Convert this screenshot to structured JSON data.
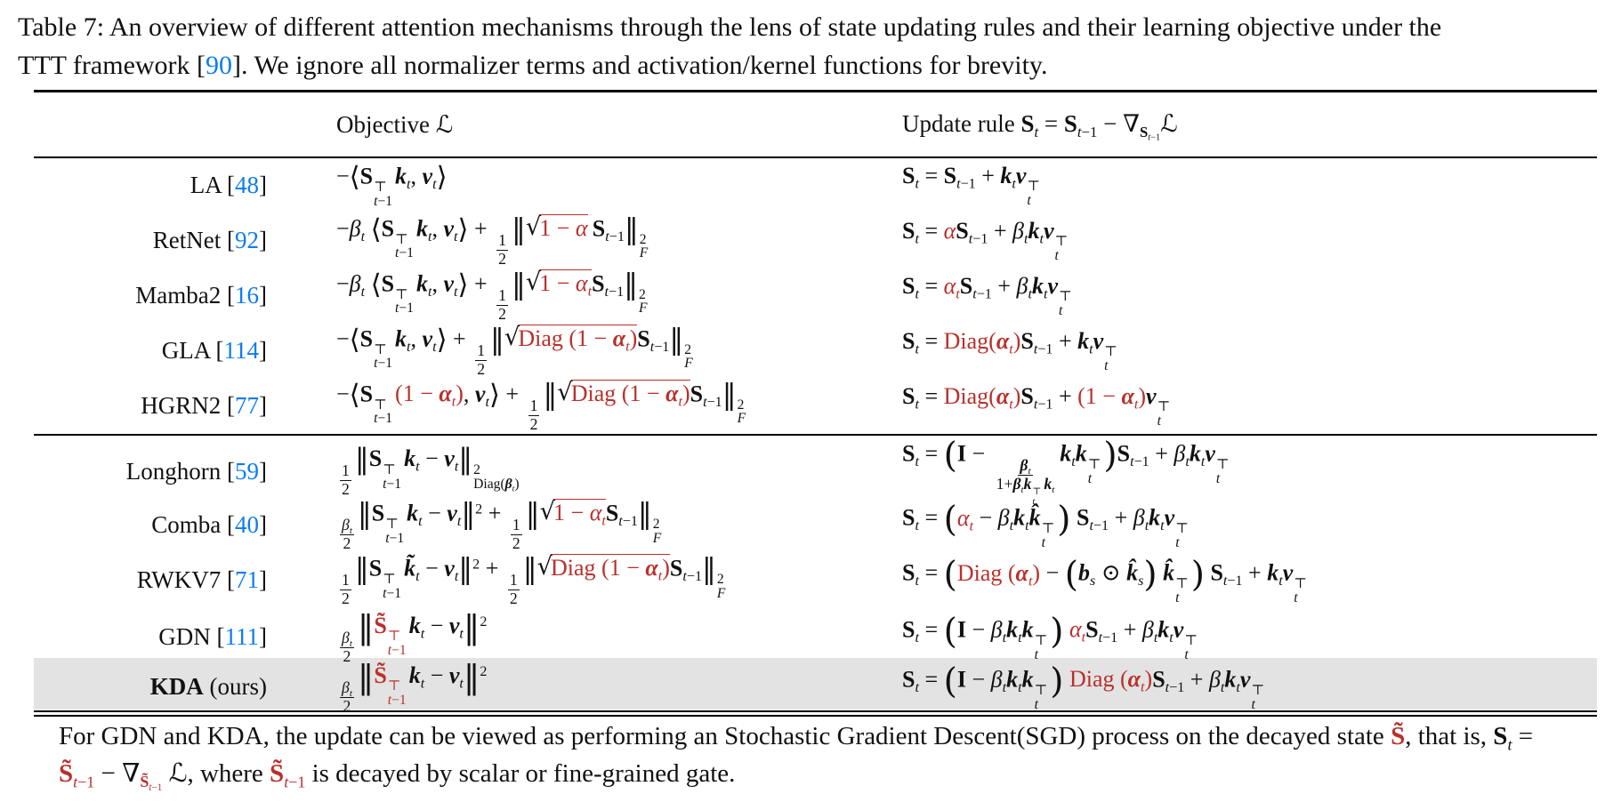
{
  "colors": {
    "accent_blue": "#0d7cf2",
    "formula_red": "#b9302c",
    "highlight_gray": "#e3e3e3"
  },
  "caption": {
    "html": "Table 7: An overview of different attention mechanisms through the lens of state updating rules and their learning objective under the<br>TTT framework [<span class='cite'>90</span>]. We ignore all normalizer terms and activation/kernel functions for brevity."
  },
  "table": {
    "header": {
      "objective_html": "Objective <span class='scr'>ℒ</span>",
      "update_html": "Update rule <b>S</b><sub><i>t</i></sub> = <b>S</b><sub><i>t</i>−1</sub> − ∇<sub><b>S</b><sub><i>t</i>−1</sub></sub><span class='scr'>ℒ</span>"
    },
    "rows": [
      {
        "id": "la",
        "group": 1,
        "highlight": false,
        "name_html": "LA [<span class='cite'>48</span>]",
        "obj_html": "−<span class='ab'>⟨</span><b>S</b><span class='ss'><span>⊤</span><span><i>t</i>−1</span></span><b><i>k</i></b><sub><i>t</i></sub>, <b><i>v</i></b><sub><i>t</i></sub><span class='ab'>⟩</span>",
        "upd_html": "<b>S</b><sub><i>t</i></sub> = <b>S</b><sub><i>t</i>−1</sub> + <b><i>k</i></b><sub><i>t</i></sub><b><i>v</i></b><span class='ss'><span>⊤</span><span><i>t</i></span></span>"
      },
      {
        "id": "retnet",
        "group": 1,
        "highlight": false,
        "name_html": "RetNet [<span class='cite'>92</span>]",
        "obj_html": "−<i>β</i><sub><i>t</i></sub> <span class='ab'>⟨</span><b>S</b><span class='ss'><span>⊤</span><span><i>t</i>−1</span></span><b><i>k</i></b><sub><i>t</i></sub>, <b><i>v</i></b><sub><i>t</i></sub><span class='ab'>⟩</span> + <span class='fr'><span class='fn'>1</span><span class='fd'>2</span></span><span class='nb'>‖</span><span class='sq'>√</span><span class='ov r'>1 − <i>α</i></span>&thinsp;<b>S</b><sub><i>t</i>−1</sub><span class='nb'>‖</span><span class='ss'><span>2</span><span><i>F</i></span></span>",
        "upd_html": "<b>S</b><sub><i>t</i></sub> = <span class='r'><i>α</i></span><b>S</b><sub><i>t</i>−1</sub> + <i>β</i><sub><i>t</i></sub><b><i>k</i></b><sub><i>t</i></sub><b><i>v</i></b><span class='ss'><span>⊤</span><span><i>t</i></span></span>"
      },
      {
        "id": "mamba2",
        "group": 1,
        "highlight": false,
        "name_html": "Mamba2 [<span class='cite'>16</span>]",
        "obj_html": "−<i>β</i><sub><i>t</i></sub> <span class='ab'>⟨</span><b>S</b><span class='ss'><span>⊤</span><span><i>t</i>−1</span></span><b><i>k</i></b><sub><i>t</i></sub>, <b><i>v</i></b><sub><i>t</i></sub><span class='ab'>⟩</span> + <span class='fr'><span class='fn'>1</span><span class='fd'>2</span></span><span class='nb'>‖</span><span class='sq'>√</span><span class='ov r'>1 − <i>α</i><sub><i>t</i></sub></span><b>S</b><sub><i>t</i>−1</sub><span class='nb'>‖</span><span class='ss'><span>2</span><span><i>F</i></span></span>",
        "upd_html": "<b>S</b><sub><i>t</i></sub> = <span class='r'><i>α</i><sub><i>t</i></sub></span><b>S</b><sub><i>t</i>−1</sub> + <i>β</i><sub><i>t</i></sub><b><i>k</i></b><sub><i>t</i></sub><b><i>v</i></b><span class='ss'><span>⊤</span><span><i>t</i></span></span>"
      },
      {
        "id": "gla",
        "group": 1,
        "highlight": false,
        "name_html": "GLA [<span class='cite'>114</span>]",
        "obj_html": "−<span class='ab'>⟨</span><b>S</b><span class='ss'><span>⊤</span><span><i>t</i>−1</span></span><b><i>k</i></b><sub><i>t</i></sub>, <b><i>v</i></b><sub><i>t</i></sub><span class='ab'>⟩</span> + <span class='fr'><span class='fn'>1</span><span class='fd'>2</span></span><span class='nb'>‖</span><span class='sq'>√</span><span class='ov r'>Diag (1 − <b><i>α</i></b><sub><i>t</i></sub>)</span><b>S</b><sub><i>t</i>−1</sub><span class='nb'>‖</span><span class='ss'><span>2</span><span><i>F</i></span></span>",
        "upd_html": "<b>S</b><sub><i>t</i></sub> = <span class='r'>Diag(<b><i>α</i></b><sub><i>t</i></sub>)</span><b>S</b><sub><i>t</i>−1</sub> + <b><i>k</i></b><sub><i>t</i></sub><b><i>v</i></b><span class='ss'><span>⊤</span><span><i>t</i></span></span>"
      },
      {
        "id": "hgrn2",
        "group": 1,
        "highlight": false,
        "name_html": "HGRN2 [<span class='cite'>77</span>]",
        "obj_html": "−<span class='ab'>⟨</span><b>S</b><span class='ss'><span>⊤</span><span><i>t</i>−1</span></span><span class='r'>(1 − <b><i>α</i></b><sub><i>t</i></sub>)</span>, <b><i>v</i></b><sub><i>t</i></sub><span class='ab'>⟩</span> + <span class='fr'><span class='fn'>1</span><span class='fd'>2</span></span><span class='nb'>‖</span><span class='sq'>√</span><span class='ov r'>Diag (1 − <b><i>α</i></b><sub><i>t</i></sub>)</span><b>S</b><sub><i>t</i>−1</sub><span class='nb'>‖</span><span class='ss'><span>2</span><span><i>F</i></span></span>",
        "upd_html": "<b>S</b><sub><i>t</i></sub> = <span class='r'>Diag(<b><i>α</i></b><sub><i>t</i></sub>)</span><b>S</b><sub><i>t</i>−1</sub> + <span class='r'>(1 − <b><i>α</i></b><sub><i>t</i></sub>)</span><b><i>v</i></b><span class='ss'><span>⊤</span><span><i>t</i></span></span>"
      },
      {
        "id": "longhorn",
        "group": 2,
        "highlight": false,
        "name_html": "Longhorn [<span class='cite'>59</span>]",
        "obj_html": "<span class='fr'><span class='fn'>1</span><span class='fd'>2</span></span><span class='nb'>‖</span><b>S</b><span class='ss'><span>⊤</span><span><i>t</i>−1</span></span><b><i>k</i></b><sub><i>t</i></sub> − <b><i>v</i></b><sub><i>t</i></sub><span class='nb'>‖</span><span class='ss'><span>2</span><span>Diag(<b><i>β</i></b><sub><i>t</i></sub>)</span></span>",
        "upd_html": "<b>S</b><sub><i>t</i></sub> = <span class='bp'>(</span><b>I</b> − <span class='fr'><span class='fn'><b><i>β</i></b><sub><i>t</i></sub></span><span class='fd'>1+<b><i>β</i></b><sub><i>t</i></sub><b><i>k</i></b><span class='ss'><span>⊤</span><span><i>t</i></span></span><b><i>k</i></b><sub><i>t</i></sub></span></span><b><i>k</i></b><sub><i>t</i></sub><b><i>k</i></b><span class='ss'><span>⊤</span><span><i>t</i></span></span><span class='bp'>)</span><b>S</b><sub><i>t</i>−1</sub> + <i>β</i><sub><i>t</i></sub><b><i>k</i></b><sub><i>t</i></sub><b><i>v</i></b><span class='ss'><span>⊤</span><span><i>t</i></span></span>"
      },
      {
        "id": "comba",
        "group": 2,
        "highlight": false,
        "name_html": "Comba [<span class='cite'>40</span>]",
        "obj_html": "<span class='fr'><span class='fn'><i>β</i><sub><i>t</i></sub></span><span class='fd'>2</span></span><span class='nb'>‖</span><b>S</b><span class='ss'><span>⊤</span><span><i>t</i>−1</span></span><b><i>k</i></b><sub><i>t</i></sub> − <b><i>v</i></b><sub><i>t</i></sub><span class='nb'>‖</span><sup>2</sup> + <span class='fr'><span class='fn'>1</span><span class='fd'>2</span></span><span class='nb'>‖</span><span class='sq'>√</span><span class='ov r'>1 − <i>α</i><sub><i>t</i></sub></span><b>S</b><sub><i>t</i>−1</sub><span class='nb'>‖</span><span class='ss'><span>2</span><span><i>F</i></span></span>",
        "upd_html": "<b>S</b><sub><i>t</i></sub> = <span class='bp'>(</span><span class='r'><i>α</i><sub><i>t</i></sub></span> − <i>β</i><sub><i>t</i></sub><b><i>k</i></b><sub><i>t</i></sub><b><i>k&#770;</i></b><span class='ss'><span>⊤</span><span><i>t</i></span></span><span class='bp'>)</span> <b>S</b><sub><i>t</i>−1</sub> + <i>β</i><sub><i>t</i></sub><b><i>k</i></b><sub><i>t</i></sub><b><i>v</i></b><span class='ss'><span>⊤</span><span><i>t</i></span></span>"
      },
      {
        "id": "rwkv7",
        "group": 2,
        "highlight": false,
        "name_html": "RWKV7 [<span class='cite'>71</span>]",
        "obj_html": "<span class='fr'><span class='fn'>1</span><span class='fd'>2</span></span><span class='nb'>‖</span><b>S</b><span class='ss'><span>⊤</span><span><i>t</i>−1</span></span><b><i>k&#771;</i></b><sub><i>t</i></sub> − <b><i>v</i></b><sub><i>t</i></sub><span class='nb'>‖</span><sup>2</sup> + <span class='fr'><span class='fn'>1</span><span class='fd'>2</span></span><span class='nb'>‖</span><span class='sq'>√</span><span class='ov r'>Diag (1 − <b><i>α</i></b><sub><i>t</i></sub>)</span><b>S</b><sub><i>t</i>−1</sub><span class='nb'>‖</span><span class='ss'><span>2</span><span><i>F</i></span></span>",
        "upd_html": "<b>S</b><sub><i>t</i></sub> = <span class='bp'>(</span><span class='r'>Diag (<b><i>α</i></b><sub><i>t</i></sub>)</span> − <span class='bp'>(</span><b><i>b</i></b><sub><i>s</i></sub> ⊙ <b><i>k&#770;</i></b><sub><i>s</i></sub><span class='bp'>)</span> <b><i>k&#770;</i></b><span class='ss'><span>⊤</span><span><i>t</i></span></span><span class='bp'>)</span> <b>S</b><sub><i>t</i>−1</sub> + <b><i>k</i></b><sub><i>t</i></sub><b><i>v</i></b><span class='ss'><span>⊤</span><span><i>t</i></span></span>"
      },
      {
        "id": "gdn",
        "group": 2,
        "highlight": false,
        "name_html": "GDN [<span class='cite'>111</span>]",
        "obj_html": "<span class='fr'><span class='fn'><i>β</i><sub><i>t</i></sub></span><span class='fd'>2</span></span><span class='nb big'>‖</span><span class='r'><b>S&#771;</b><span class='ss'><span>⊤</span><span><i>t</i>−1</span></span></span><b><i>k</i></b><sub><i>t</i></sub> − <b><i>v</i></b><sub><i>t</i></sub><span class='nb big'>‖</span><sup>2</sup>",
        "upd_html": "<b>S</b><sub><i>t</i></sub> = <span class='bp'>(</span><b>I</b> − <i>β</i><sub><i>t</i></sub><b><i>k</i></b><sub><i>t</i></sub><b><i>k</i></b><span class='ss'><span>⊤</span><span><i>t</i></span></span><span class='bp'>)</span> <span class='r'><i>α</i><sub><i>t</i></sub></span><b>S</b><sub><i>t</i>−1</sub> + <i>β</i><sub><i>t</i></sub><b><i>k</i></b><sub><i>t</i></sub><b><i>v</i></b><span class='ss'><span>⊤</span><span><i>t</i></span></span>"
      },
      {
        "id": "kda",
        "group": 2,
        "highlight": true,
        "name_html": "<b>KDA</b> (ours)",
        "obj_html": "<span class='fr'><span class='fn'><i>β</i><sub><i>t</i></sub></span><span class='fd'>2</span></span><span class='nb big'>‖</span><span class='r'><b>S&#771;</b><span class='ss'><span>⊤</span><span><i>t</i>−1</span></span></span><b><i>k</i></b><sub><i>t</i></sub> − <b><i>v</i></b><sub><i>t</i></sub><span class='nb big'>‖</span><sup>2</sup>",
        "upd_html": "<b>S</b><sub><i>t</i></sub> = <span class='bp'>(</span><b>I</b> − <i>β</i><sub><i>t</i></sub><b><i>k</i></b><sub><i>t</i></sub><b><i>k</i></b><span class='ss'><span>⊤</span><span><i>t</i></span></span><span class='bp'>)</span> <span class='r'>Diag (<b><i>α</i></b><sub><i>t</i></sub>)</span><b>S</b><sub><i>t</i>−1</sub> + <i>β</i><sub><i>t</i></sub><b><i>k</i></b><sub><i>t</i></sub><b><i>v</i></b><span class='ss'><span>⊤</span><span><i>t</i></span></span>"
      }
    ]
  },
  "footnote": {
    "html": "For GDN and KDA, the update can be viewed as performing an Stochastic Gradient Descent(SGD) process on the decayed state <span class='r'><b>S&#771;</b></span>, that is, <b>S</b><sub><i>t</i></sub> =<br><span class='r'><b>S&#771;</b><sub><i>t</i>−1</sub></span> − ∇<sub><span class='r'><b>S&#771;</b><sub><i>t</i>−1</sub></span></sub> <span class='scr'>ℒ</span>, where <span class='r'><b>S&#771;</b><sub><i>t</i>−1</sub></span> is decayed by scalar or fine-grained gate."
  }
}
